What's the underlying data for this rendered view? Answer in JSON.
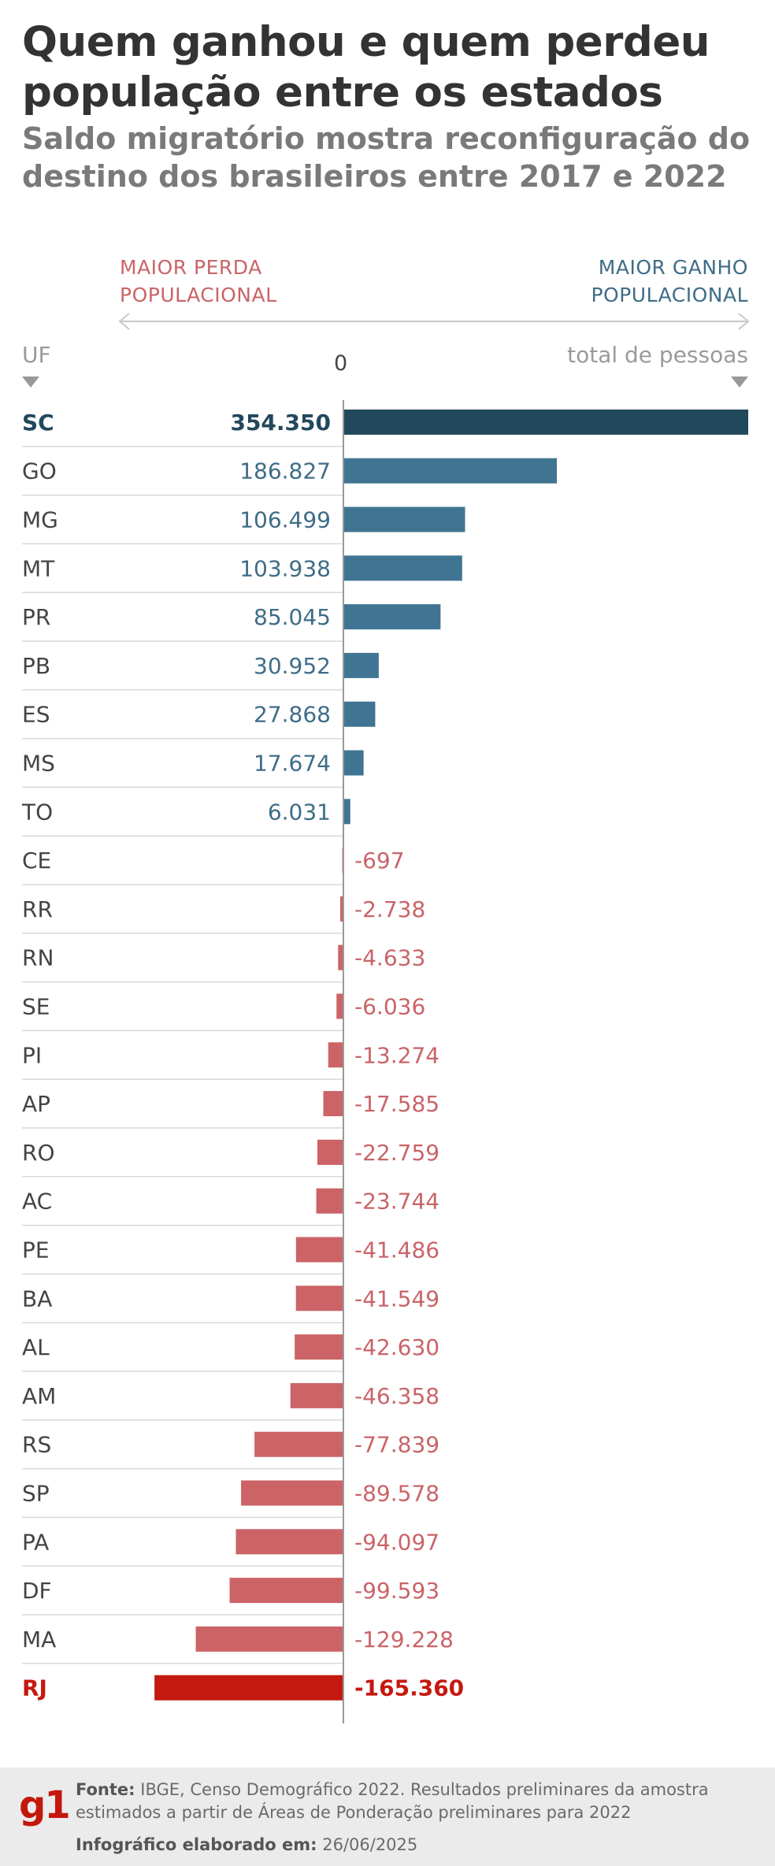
{
  "title": "Quem ganhou e quem perdeu população entre os estados",
  "subtitle": "Saldo migratório mostra reconfiguração do destino dos brasileiros entre 2017 e 2022",
  "direction": {
    "loss_line1": "MAIOR PERDA",
    "loss_line2": "POPULACIONAL",
    "gain_line1": "MAIOR GANHO",
    "gain_line2": "POPULACIONAL"
  },
  "column_headers": {
    "uf": "UF",
    "zero": "0",
    "total": "total de pessoas"
  },
  "colors": {
    "gain": "#3f7592",
    "gain_highlight": "#21485b",
    "loss": "#cc6366",
    "loss_highlight": "#c4190f",
    "gain_text": "#3f6d87",
    "loss_text": "#c96468"
  },
  "chart_data": {
    "type": "bar",
    "orientation": "horizontal",
    "xlim": [
      -165360,
      354350
    ],
    "highlighted": [
      "SC",
      "RJ"
    ],
    "categories": [
      "SC",
      "GO",
      "MG",
      "MT",
      "PR",
      "PB",
      "ES",
      "MS",
      "TO",
      "CE",
      "RR",
      "RN",
      "SE",
      "PI",
      "AP",
      "RO",
      "AC",
      "PE",
      "BA",
      "AL",
      "AM",
      "RS",
      "SP",
      "PA",
      "DF",
      "MA",
      "RJ"
    ],
    "values": [
      354350,
      186827,
      106499,
      103938,
      85045,
      30952,
      27868,
      17674,
      6031,
      -697,
      -2738,
      -4633,
      -6036,
      -13274,
      -17585,
      -22759,
      -23744,
      -41486,
      -41549,
      -42630,
      -46358,
      -77839,
      -89578,
      -94097,
      -99593,
      -129228,
      -165360
    ],
    "labels": [
      "354.350",
      "186.827",
      "106.499",
      "103.938",
      "85.045",
      "30.952",
      "27.868",
      "17.674",
      "6.031",
      "-697",
      "-2.738",
      "-4.633",
      "-6.036",
      "-13.274",
      "-17.585",
      "-22.759",
      "-23.744",
      "-41.486",
      "-41.549",
      "-42.630",
      "-46.358",
      "-77.839",
      "-89.578",
      "-94.097",
      "-99.593",
      "-129.228",
      "-165.360"
    ]
  },
  "footer": {
    "logo": "g1",
    "source_label": "Fonte:",
    "source_text": "IBGE, Censo Demográfico 2022. Resultados preliminares da amostra estimados a partir de Áreas de Ponderação preliminares para 2022",
    "made_label": "Infográfico elaborado em:",
    "made_date": "26/06/2025"
  }
}
